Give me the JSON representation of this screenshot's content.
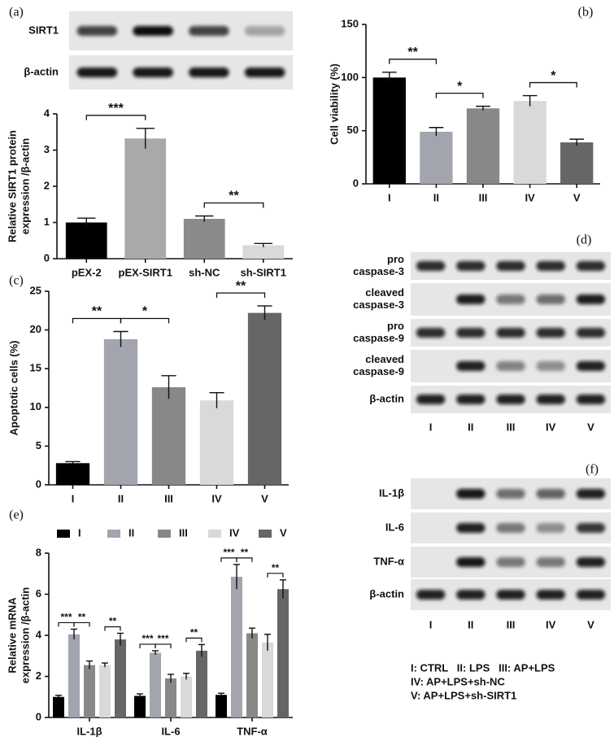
{
  "chart_data": [
    {
      "type": "bar",
      "panel_label": "(a)",
      "ylabel": [
        "Relative SIRT1 protein",
        "expression /β-actin"
      ],
      "categories": [
        "pEX-2",
        "pEX-SIRT1",
        "sh-NC",
        "sh-SIRT1"
      ],
      "values": [
        1.0,
        3.32,
        1.1,
        0.37
      ],
      "errors": [
        0.12,
        0.28,
        0.08,
        0.05
      ],
      "colors": [
        "#000000",
        "#a9a9a9",
        "#8a8a8a",
        "#d9d9d9"
      ],
      "ylim": [
        0,
        4
      ],
      "yticks": [
        0,
        1,
        2,
        3,
        4
      ],
      "annotations": [
        {
          "text": "***",
          "between": [
            0,
            1
          ]
        },
        {
          "text": "**",
          "between": [
            2,
            3
          ]
        }
      ]
    },
    {
      "type": "bar",
      "panel_label": "(b)",
      "ylabel": [
        "Cell viability (%)"
      ],
      "categories": [
        "I",
        "II",
        "III",
        "IV",
        "V"
      ],
      "values": [
        100,
        49,
        71,
        78,
        39
      ],
      "errors": [
        5,
        4,
        2,
        5,
        3
      ],
      "colors": [
        "#000000",
        "#a2a4ae",
        "#888888",
        "#d9d9d9",
        "#666666"
      ],
      "ylim": [
        0,
        150
      ],
      "yticks": [
        0,
        50,
        100,
        150
      ],
      "annotations": [
        {
          "text": "**",
          "between": [
            0,
            1
          ]
        },
        {
          "text": "*",
          "between": [
            1,
            2
          ]
        },
        {
          "text": "*",
          "between": [
            3,
            4
          ]
        }
      ]
    },
    {
      "type": "bar",
      "panel_label": "(c)",
      "ylabel": [
        "Apoptotic cells (%)"
      ],
      "categories": [
        "I",
        "II",
        "III",
        "IV",
        "V"
      ],
      "values": [
        2.8,
        18.8,
        12.6,
        10.9,
        22.2
      ],
      "errors": [
        0.2,
        1.0,
        1.5,
        1.0,
        0.9
      ],
      "colors": [
        "#000000",
        "#a2a4ae",
        "#888888",
        "#d9d9d9",
        "#666666"
      ],
      "ylim": [
        0,
        25
      ],
      "yticks": [
        0,
        5,
        10,
        15,
        20,
        25
      ],
      "annotations": [
        {
          "text": "**",
          "between": [
            0,
            1
          ]
        },
        {
          "text": "*",
          "between": [
            1,
            2
          ]
        },
        {
          "text": "**",
          "between": [
            3,
            4
          ]
        }
      ]
    },
    {
      "type": "grouped_bar",
      "panel_label": "(e)",
      "ylabel": [
        "Relative mRNA",
        "expression /β-actin"
      ],
      "categories": [
        "IL-1β",
        "IL-6",
        "TNF-α"
      ],
      "series": [
        {
          "name": "I",
          "color": "#000000",
          "values": [
            1.0,
            1.05,
            1.1
          ],
          "errors": [
            0.08,
            0.1,
            0.08
          ]
        },
        {
          "name": "II",
          "color": "#a2a4ae",
          "values": [
            4.05,
            3.15,
            6.85
          ],
          "errors": [
            0.25,
            0.1,
            0.6
          ]
        },
        {
          "name": "III",
          "color": "#888888",
          "values": [
            2.55,
            1.9,
            4.1
          ],
          "errors": [
            0.2,
            0.2,
            0.25
          ]
        },
        {
          "name": "IV",
          "color": "#d9d9d9",
          "values": [
            2.55,
            2.0,
            3.65
          ],
          "errors": [
            0.1,
            0.15,
            0.4
          ]
        },
        {
          "name": "V",
          "color": "#666666",
          "values": [
            3.8,
            3.25,
            6.25
          ],
          "errors": [
            0.3,
            0.3,
            0.45
          ]
        }
      ],
      "ylim": [
        0,
        8
      ],
      "yticks": [
        0,
        2,
        4,
        6,
        8
      ],
      "annotations": [
        {
          "text": "***",
          "group": 0,
          "between": [
            0,
            1
          ]
        },
        {
          "text": "**",
          "group": 0,
          "between": [
            1,
            2
          ]
        },
        {
          "text": "**",
          "group": 0,
          "between": [
            3,
            4
          ]
        },
        {
          "text": "***",
          "group": 1,
          "between": [
            0,
            1
          ]
        },
        {
          "text": "***",
          "group": 1,
          "between": [
            1,
            2
          ]
        },
        {
          "text": "**",
          "group": 1,
          "between": [
            3,
            4
          ]
        },
        {
          "text": "***",
          "group": 2,
          "between": [
            0,
            1
          ]
        },
        {
          "text": "**",
          "group": 2,
          "between": [
            1,
            2
          ]
        },
        {
          "text": "**",
          "group": 2,
          "between": [
            3,
            4
          ]
        }
      ]
    }
  ],
  "blots": [
    {
      "rows": [
        [
          "SIRT1"
        ],
        [
          "β-actin"
        ]
      ]
    },
    {
      "panel_label": "(d)",
      "rows": [
        [
          "pro",
          "caspase-3"
        ],
        [
          "cleaved",
          "caspase-3"
        ],
        [
          "pro",
          "caspase-9"
        ],
        [
          "cleaved",
          "caspase-9"
        ],
        [
          "β-actin"
        ]
      ],
      "lanes": [
        "I",
        "II",
        "III",
        "IV",
        "V"
      ]
    },
    {
      "panel_label": "(f)",
      "rows": [
        [
          "IL-1β"
        ],
        [
          "IL-6"
        ],
        [
          "TNF-α"
        ],
        [
          "β-actin"
        ]
      ],
      "lanes": [
        "I",
        "II",
        "III",
        "IV",
        "V"
      ]
    }
  ],
  "group_legend": [
    "I: CTRL   II: LPS   III: AP+LPS",
    "IV: AP+LPS+sh-NC",
    "V: AP+LPS+sh-SIRT1"
  ]
}
